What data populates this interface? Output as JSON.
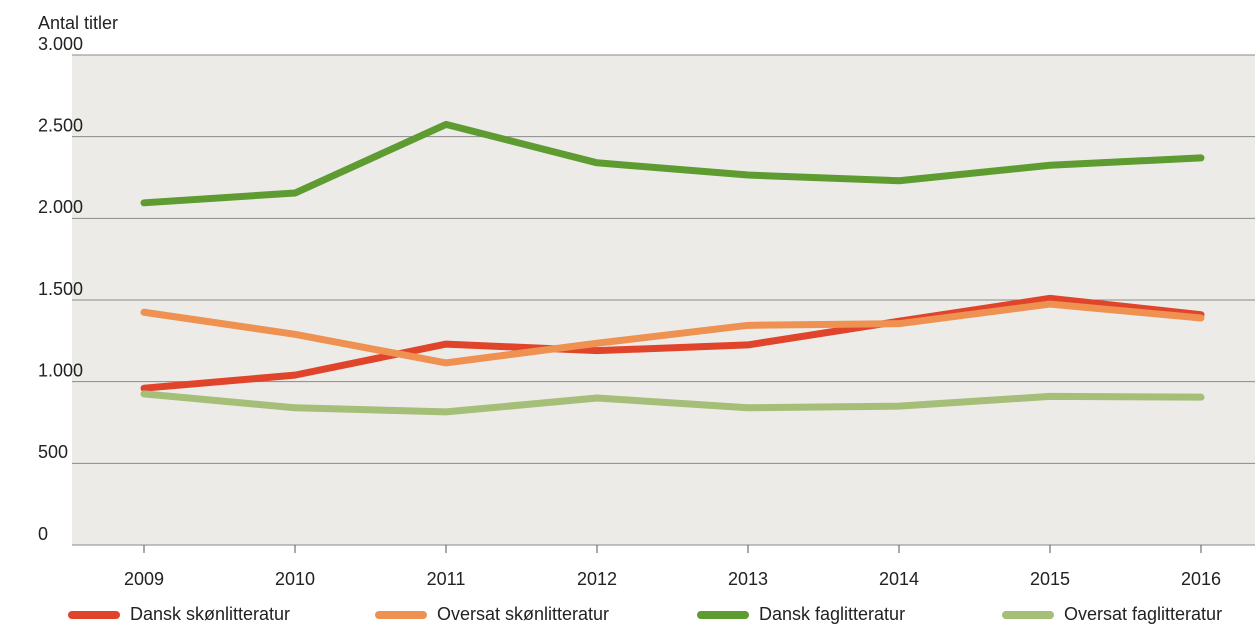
{
  "chart_data": {
    "type": "line",
    "y_label": "Antal titler",
    "categories": [
      "2009",
      "2010",
      "2011",
      "2012",
      "2013",
      "2014",
      "2015",
      "2016"
    ],
    "series": [
      {
        "name": "Dansk skønlitteratur",
        "color": "#e0442a",
        "values": [
          960,
          1040,
          1230,
          1190,
          1225,
          1370,
          1510,
          1410
        ]
      },
      {
        "name": "Oversat skønlitteratur",
        "color": "#ef9150",
        "values": [
          1425,
          1290,
          1115,
          1235,
          1345,
          1355,
          1475,
          1390
        ]
      },
      {
        "name": "Dansk faglitteratur",
        "color": "#5e9b30",
        "values": [
          2095,
          2155,
          2575,
          2340,
          2265,
          2230,
          2325,
          2370
        ]
      },
      {
        "name": "Oversat faglitteratur",
        "color": "#a5be78",
        "values": [
          925,
          840,
          815,
          900,
          840,
          850,
          910,
          905
        ]
      }
    ],
    "ylim": [
      0,
      3000
    ],
    "yticks": [
      0,
      500,
      {
        "value": 1000,
        "label": "1.000"
      },
      {
        "value": 1500,
        "label": "1.500"
      },
      {
        "value": 2000,
        "label": "2.000"
      },
      {
        "value": 2500,
        "label": "2.500"
      },
      {
        "value": 3000,
        "label": "3.000"
      }
    ],
    "grid": true,
    "legend": "bottom"
  }
}
